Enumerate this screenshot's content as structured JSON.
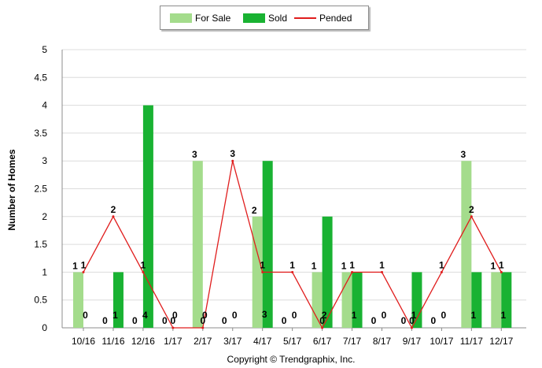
{
  "chart_data": {
    "type": "bar",
    "categories": [
      "10/16",
      "11/16",
      "12/16",
      "1/17",
      "2/17",
      "3/17",
      "4/17",
      "5/17",
      "6/17",
      "7/17",
      "8/17",
      "9/17",
      "10/17",
      "11/17",
      "12/17"
    ],
    "series": [
      {
        "name": "For Sale",
        "type": "bar",
        "color": "#a4dc8c",
        "values": [
          1,
          0,
          0,
          0,
          3,
          0,
          2,
          0,
          1,
          1,
          0,
          0,
          0,
          3,
          1
        ]
      },
      {
        "name": "Sold",
        "type": "bar",
        "color": "#19b232",
        "values": [
          0,
          1,
          4,
          0,
          0,
          0,
          3,
          0,
          2,
          1,
          0,
          1,
          0,
          1,
          1
        ]
      },
      {
        "name": "Pended",
        "type": "line",
        "color": "#e01d1d",
        "values": [
          1,
          2,
          1,
          0,
          0,
          3,
          1,
          1,
          0,
          1,
          1,
          0,
          1,
          2,
          1
        ]
      }
    ],
    "xlabel": "",
    "ylabel": "Number of Homes",
    "ylim": [
      0,
      5
    ],
    "yticks": [
      "0",
      "0.5",
      "1",
      "1.5",
      "2",
      "2.5",
      "3",
      "3.5",
      "4",
      "4.5",
      "5"
    ],
    "grid": true,
    "legend": "top-center"
  },
  "legend": {
    "for_sale": "For Sale",
    "sold": "Sold",
    "pended": "Pended"
  },
  "copyright": "Copyright © Trendgraphix, Inc."
}
